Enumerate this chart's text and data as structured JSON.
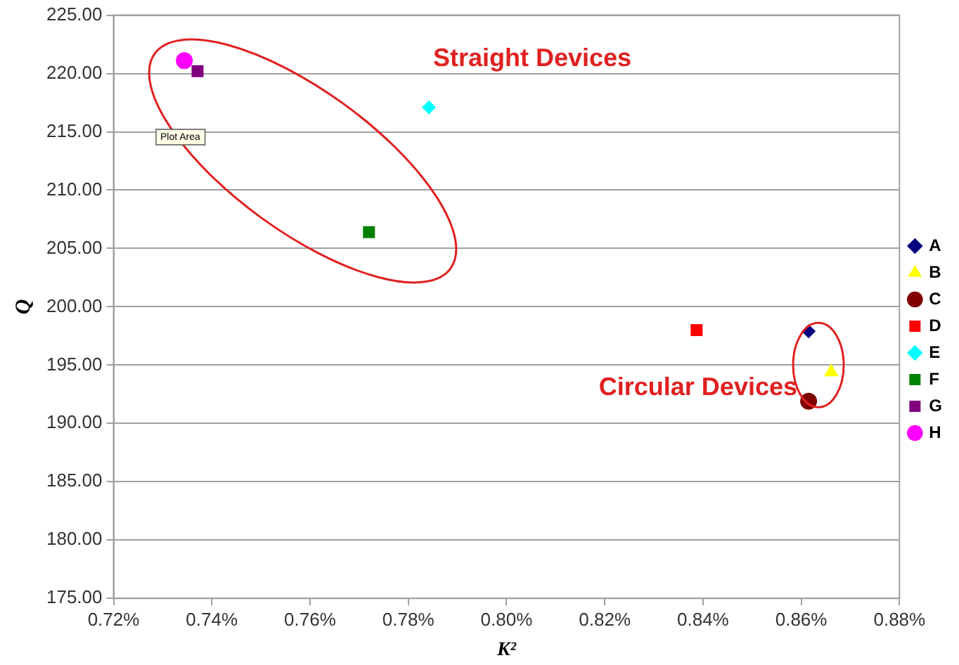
{
  "chart_data": {
    "type": "scatter",
    "xlabel": "K²",
    "ylabel": "Q",
    "series": [
      {
        "name": "A",
        "color": "#000080",
        "marker": "diamond",
        "x": [
          0.8615
        ],
        "values": [
          197.9
        ]
      },
      {
        "name": "B",
        "color": "#ffff00",
        "marker": "triangle",
        "x": [
          0.8661
        ],
        "values": [
          194.4
        ]
      },
      {
        "name": "C",
        "color": "#800000",
        "marker": "circle",
        "x": [
          0.8615
        ],
        "values": [
          191.9
        ]
      },
      {
        "name": "D",
        "color": "#ff0000",
        "marker": "square",
        "x": [
          0.8387
        ],
        "values": [
          198.0
        ]
      },
      {
        "name": "E",
        "color": "#00ffff",
        "marker": "diamond",
        "x": [
          0.7842
        ],
        "values": [
          217.1
        ]
      },
      {
        "name": "F",
        "color": "#008000",
        "marker": "square",
        "x": [
          0.772
        ],
        "values": [
          206.4
        ]
      },
      {
        "name": "G",
        "color": "#800080",
        "marker": "square",
        "x": [
          0.7371
        ],
        "values": [
          220.2
        ]
      },
      {
        "name": "H",
        "color": "#ff00ff",
        "marker": "circle",
        "x": [
          0.7344
        ],
        "values": [
          221.1
        ]
      }
    ],
    "xlim": [
      0.72,
      0.88
    ],
    "xticks": [
      {
        "value": 0.72,
        "label": "0.72%"
      },
      {
        "value": 0.74,
        "label": "0.74%"
      },
      {
        "value": 0.76,
        "label": "0.76%"
      },
      {
        "value": 0.78,
        "label": "0.78%"
      },
      {
        "value": 0.8,
        "label": "0.80%"
      },
      {
        "value": 0.82,
        "label": "0.82%"
      },
      {
        "value": 0.84,
        "label": "0.84%"
      },
      {
        "value": 0.86,
        "label": "0.86%"
      },
      {
        "value": 0.88,
        "label": "0.88%"
      }
    ],
    "ylim": [
      175,
      225
    ],
    "yticks": [
      {
        "value": 175,
        "label": "175.00"
      },
      {
        "value": 180,
        "label": "180.00"
      },
      {
        "value": 185,
        "label": "185.00"
      },
      {
        "value": 190,
        "label": "190.00"
      },
      {
        "value": 195,
        "label": "195.00"
      },
      {
        "value": 200,
        "label": "200.00"
      },
      {
        "value": 205,
        "label": "205.00"
      },
      {
        "value": 210,
        "label": "210.00"
      },
      {
        "value": 215,
        "label": "215.00"
      },
      {
        "value": 220,
        "label": "220.00"
      },
      {
        "value": 225,
        "label": "225.00"
      }
    ],
    "grid": "y",
    "legend": "right",
    "annotations": [
      "Straight Devices",
      "Circular Devices",
      "Plot Area"
    ]
  }
}
